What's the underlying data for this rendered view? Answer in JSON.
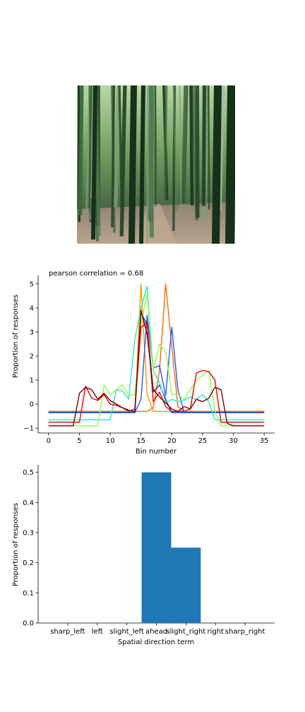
{
  "photo": {
    "icon": "bamboo-forest-photo"
  },
  "chart_data": [
    {
      "type": "line",
      "title": "pearson correlation = 0.68",
      "xlabel": "Bin number",
      "ylabel": "Proportion of responses",
      "xlim": [
        -1.7,
        36.7
      ],
      "ylim": [
        -1.2,
        5.35
      ],
      "xticks": [
        0,
        5,
        10,
        15,
        20,
        25,
        30,
        35
      ],
      "yticks": [
        -1,
        0,
        1,
        2,
        3,
        4,
        5
      ],
      "grid": false,
      "x": [
        0,
        1,
        2,
        3,
        4,
        5,
        6,
        7,
        8,
        9,
        10,
        11,
        12,
        13,
        14,
        15,
        16,
        17,
        18,
        19,
        20,
        21,
        22,
        23,
        24,
        25,
        26,
        27,
        28,
        29,
        30,
        31,
        32,
        33,
        34,
        35
      ],
      "series": [
        {
          "color": "#ff9900",
          "values": [
            -0.3,
            -0.3,
            -0.3,
            -0.3,
            -0.3,
            -0.3,
            -0.3,
            -0.3,
            -0.3,
            -0.3,
            -0.3,
            -0.3,
            -0.3,
            -0.3,
            -0.3,
            5.0,
            0.4,
            -0.3,
            -0.3,
            -0.3,
            -0.3,
            -0.3,
            -0.3,
            -0.3,
            -0.3,
            -0.3,
            -0.3,
            -0.3,
            -0.3,
            -0.3,
            -0.3,
            -0.3,
            -0.3,
            -0.3,
            -0.3,
            -0.3
          ]
        },
        {
          "color": "#ff6a00",
          "values": [
            -0.3,
            -0.3,
            -0.3,
            -0.3,
            -0.3,
            -0.3,
            -0.3,
            -0.3,
            -0.3,
            -0.3,
            -0.3,
            -0.3,
            -0.3,
            -0.3,
            -0.3,
            -0.3,
            -0.3,
            -0.15,
            1.4,
            5.0,
            2.4,
            -0.1,
            -0.3,
            -0.3,
            -0.3,
            -0.3,
            -0.3,
            -0.3,
            -0.3,
            -0.3,
            -0.3,
            -0.3,
            -0.3,
            -0.3,
            -0.3,
            -0.3
          ]
        },
        {
          "color": "#1f5bff",
          "values": [
            -0.35,
            -0.35,
            -0.35,
            -0.35,
            -0.35,
            -0.35,
            -0.35,
            -0.35,
            -0.35,
            -0.35,
            -0.35,
            -0.35,
            -0.35,
            -0.35,
            -0.35,
            0.2,
            3.7,
            1.5,
            1.6,
            0.35,
            3.2,
            0.6,
            -0.35,
            -0.35,
            -0.35,
            -0.35,
            -0.35,
            -0.35,
            -0.35,
            -0.35,
            -0.35,
            -0.35,
            -0.35,
            -0.35,
            -0.35,
            -0.35
          ]
        },
        {
          "color": "#1a2aa0",
          "values": [
            -0.35,
            -0.35,
            -0.35,
            -0.35,
            -0.35,
            -0.35,
            -0.35,
            -0.35,
            -0.35,
            -0.35,
            -0.35,
            -0.35,
            -0.35,
            -0.35,
            -0.35,
            3.8,
            3.3,
            0.5,
            0.8,
            0.2,
            -0.35,
            -0.35,
            -0.35,
            -0.35,
            -0.35,
            -0.35,
            -0.35,
            -0.35,
            -0.35,
            -0.35,
            -0.35,
            -0.35,
            -0.35,
            -0.35,
            -0.35,
            -0.35
          ]
        },
        {
          "color": "#29e6c8",
          "values": [
            -0.65,
            -0.65,
            -0.65,
            -0.65,
            -0.65,
            -0.65,
            -0.65,
            -0.65,
            -0.65,
            -0.65,
            -0.65,
            0.6,
            0.55,
            0.2,
            2.7,
            4.0,
            4.9,
            1.4,
            0.9,
            0.05,
            0.2,
            0.1,
            0.15,
            0.3,
            0.2,
            0.4,
            0.1,
            -0.65,
            -0.65,
            -0.65,
            -0.65,
            -0.65,
            -0.65,
            -0.65,
            -0.65,
            -0.65
          ]
        },
        {
          "color": "#8cff4a",
          "values": [
            -0.9,
            -0.9,
            -0.9,
            -0.9,
            -0.9,
            -0.9,
            -0.9,
            -0.9,
            -0.9,
            0.8,
            0.4,
            0.6,
            0.8,
            0.35,
            0.4,
            3.3,
            4.6,
            1.4,
            2.5,
            2.2,
            0.4,
            0.4,
            0.2,
            0.6,
            1.0,
            1.2,
            1.4,
            -0.3,
            -0.9,
            -0.9,
            -0.9,
            -0.9,
            -0.9,
            -0.9,
            -0.9,
            -0.9
          ]
        },
        {
          "color": "#ee0000",
          "values": [
            -0.75,
            -0.75,
            -0.75,
            -0.75,
            -0.75,
            -0.75,
            0.75,
            0.25,
            0.15,
            0.4,
            0.0,
            -0.05,
            -0.15,
            -0.3,
            -0.2,
            3.2,
            3.4,
            0.1,
            0.5,
            -0.1,
            -0.3,
            -0.3,
            -0.3,
            -0.2,
            1.3,
            1.4,
            1.35,
            1.0,
            -0.75,
            -0.75,
            -0.75,
            -0.75,
            -0.75,
            -0.75,
            -0.75,
            -0.75
          ]
        },
        {
          "color": "#7a0000",
          "values": [
            -0.9,
            -0.9,
            -0.9,
            -0.9,
            -0.9,
            0.45,
            0.7,
            0.6,
            0.2,
            0.45,
            0.15,
            0.0,
            -0.15,
            -0.25,
            -0.3,
            3.9,
            2.9,
            0.6,
            0.3,
            0.05,
            -0.2,
            -0.3,
            -0.1,
            -0.2,
            0.2,
            0.1,
            0.25,
            0.7,
            0.6,
            -0.8,
            -0.9,
            -0.9,
            -0.9,
            -0.9,
            -0.9,
            -0.9
          ]
        }
      ]
    },
    {
      "type": "bar",
      "xlabel": "Spatial direction term",
      "ylabel": "Proportion of responses",
      "categories": [
        "sharp_left",
        "left",
        "slight_left",
        "ahead",
        "slight_right",
        "right",
        "sharp_right"
      ],
      "values": [
        0,
        0,
        0,
        0.5,
        0.25,
        0,
        0
      ],
      "ylim": [
        0,
        0.525
      ],
      "yticks": [
        0.0,
        0.1,
        0.2,
        0.3,
        0.4,
        0.5
      ],
      "yticklabels": [
        "0.0",
        "0.1",
        "0.2",
        "0.3",
        "0.4",
        "0.5"
      ],
      "bar_color": "#1f77b4",
      "grid": false
    }
  ]
}
